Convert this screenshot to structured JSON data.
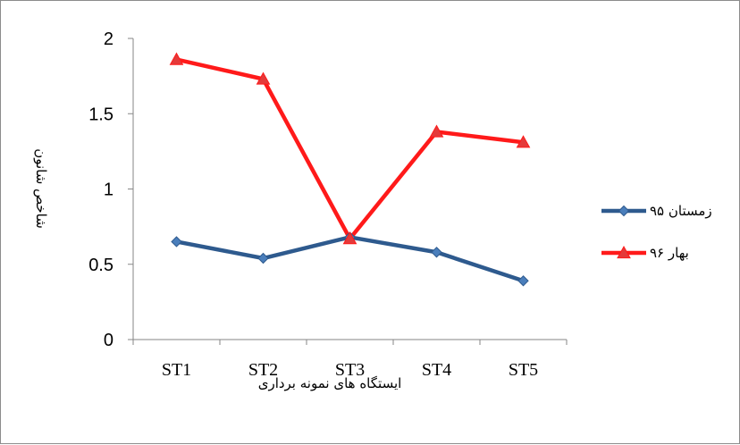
{
  "chart_data": {
    "type": "line",
    "categories": [
      "ST1",
      "ST2",
      "ST3",
      "ST4",
      "ST5"
    ],
    "series": [
      {
        "name": "زمستان ۹۵",
        "values": [
          0.65,
          0.54,
          0.68,
          0.58,
          0.39
        ],
        "color": "#2E5A8E",
        "marker": "diamond"
      },
      {
        "name": "بهار ۹۶",
        "values": [
          1.86,
          1.73,
          0.67,
          1.38,
          1.31
        ],
        "color": "#FF1A1A",
        "marker": "triangle"
      }
    ],
    "xlabel": "ایستگاه های نمونه برداری",
    "ylabel": "شاخص شانون",
    "ylim": [
      0,
      2
    ],
    "yticks": [
      "0",
      "0.5",
      "1",
      "1.5",
      "2"
    ],
    "grid": false,
    "legend_position": "right"
  }
}
